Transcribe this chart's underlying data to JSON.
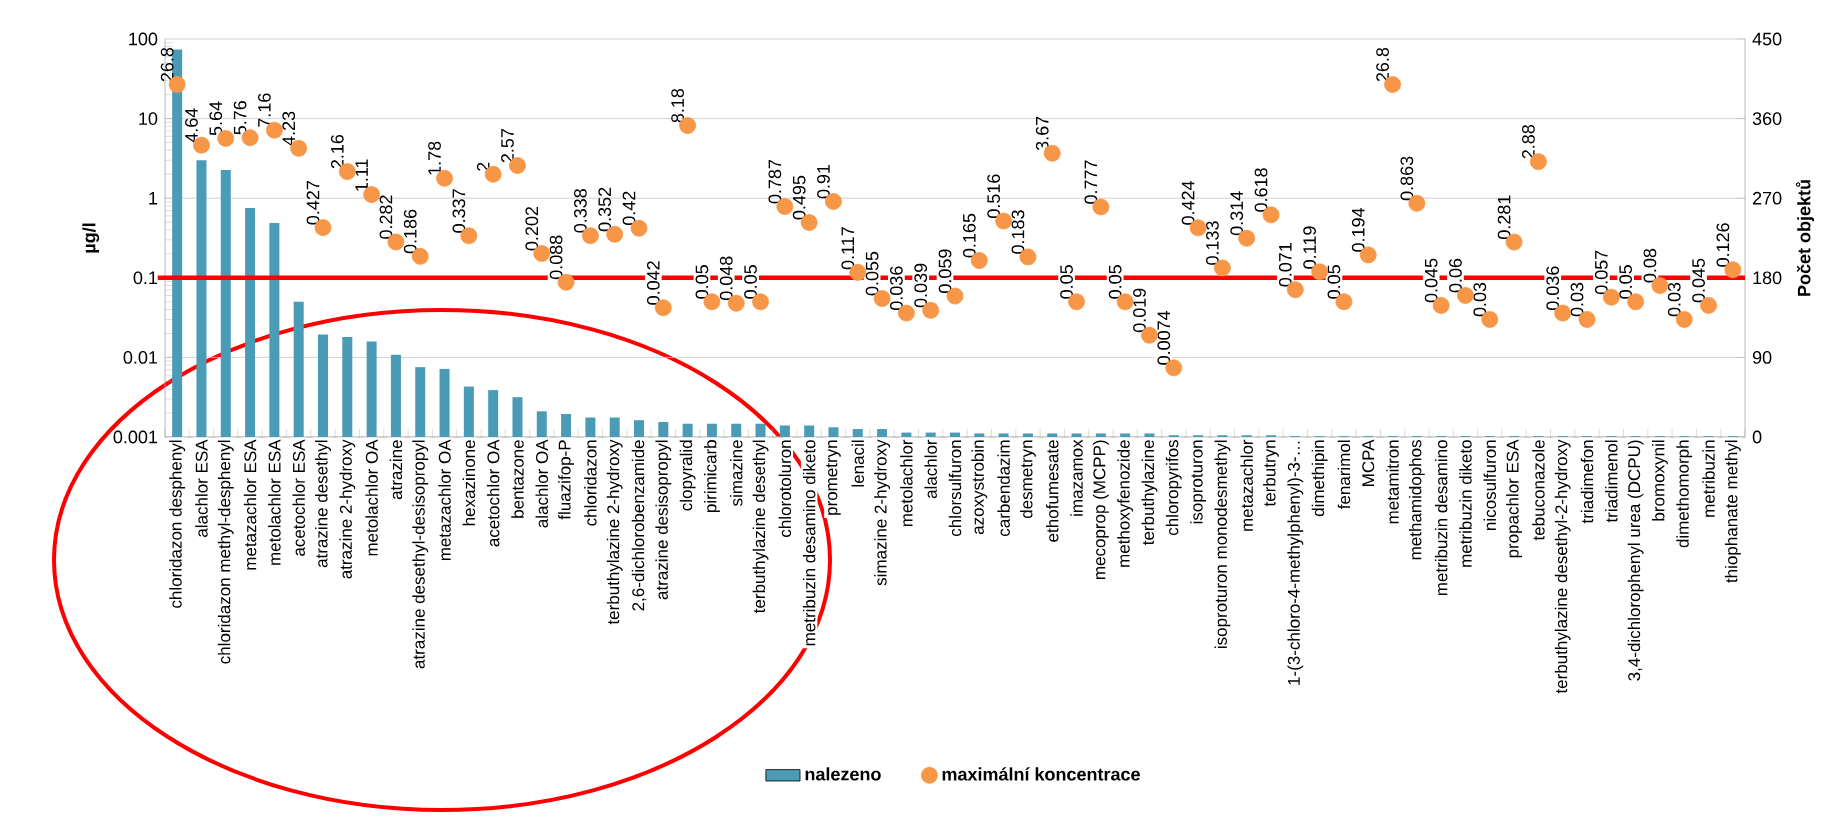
{
  "chart_data": {
    "type": "bar",
    "ylabel": "µg/l",
    "y2label": "Počet objektů",
    "categories": [
      "chloridazon desphenyl",
      "alachlor ESA",
      "chloridazon methyl-desphenyl",
      "metazachlor ESA",
      "metolachlor ESA",
      "acetochlor ESA",
      "atrazine desethyl",
      "atrazine 2-hydroxy",
      "metolachlor OA",
      "atrazine",
      "atrazine desethyl-desisopropyl",
      "metazachlor OA",
      "hexazinone",
      "acetochlor OA",
      "bentazone",
      "alachlor OA",
      "fluazifop-P",
      "chloridazon",
      "terbuthylazine 2-hydroxy",
      "2,6-dichlorobenzamide",
      "atrazine desisopropyl",
      "clopyralid",
      "pirimicarb",
      "simazine",
      "terbuthylazine desethyl",
      "chlorotoluron",
      "metribuzin desamino diketo",
      "prometryn",
      "lenacil",
      "simazine 2-hydroxy",
      "metolachlor",
      "alachlor",
      "chlorsulfuron",
      "azoxystrobin",
      "carbendazim",
      "desmetryn",
      "ethofumesate",
      "imazamox",
      "mecoprop (MCPP)",
      "methoxyfenozide",
      "terbuthylazine",
      "chloropyrifos",
      "isoproturon",
      "isoproturon monodesmethyl",
      "metazachlor",
      "terbutryn",
      "1-(3-chloro-4-methylphenyl)-3-…",
      "dimethipin",
      "fenarimol",
      "MCPA",
      "metamitron",
      "methamidophos",
      "metribuzin desamino",
      "metribuzin diketo",
      "nicosulfuron",
      "propachlor ESA",
      "tebuconazole",
      "terbuthylazine desethyl-2-hydroxy",
      "triadimefon",
      "triadimenol",
      "3,4-dichlorophenyl urea (DCPU)",
      "bromoxynil",
      "dimethomorph",
      "metribuzin",
      "thiophanate methyl"
    ],
    "series": [
      {
        "name": "nalezeno",
        "type": "bar",
        "axis": "y2",
        "color": "#4a9bb5",
        "values": [
          438,
          313,
          302,
          259,
          242,
          153,
          116,
          113,
          108,
          93,
          79,
          77,
          57,
          53,
          45,
          29,
          26,
          22,
          22,
          19,
          17,
          15,
          15,
          15,
          15,
          13,
          13,
          11,
          9,
          9,
          5,
          5,
          5,
          4,
          4,
          4,
          4,
          4,
          4,
          4,
          4,
          2,
          2,
          2,
          2,
          2,
          1,
          1,
          1,
          1,
          1,
          1,
          1,
          1,
          1,
          1,
          1,
          1,
          1,
          1,
          1,
          1,
          1,
          1,
          1
        ]
      },
      {
        "name": "maximální koncentrace",
        "type": "scatter",
        "data_labels": true,
        "color": "#f79646",
        "values": [
          26.8,
          4.64,
          5.64,
          5.76,
          7.16,
          4.23,
          0.427,
          2.16,
          1.11,
          0.282,
          0.186,
          1.78,
          0.337,
          2,
          2.57,
          0.202,
          0.088,
          0.338,
          0.352,
          0.42,
          0.042,
          8.18,
          0.05,
          0.048,
          0.05,
          0.787,
          0.495,
          0.91,
          0.117,
          0.055,
          0.036,
          0.039,
          0.059,
          0.165,
          0.516,
          0.183,
          3.67,
          0.05,
          0.777,
          0.05,
          0.019,
          0.0074,
          0.424,
          0.133,
          0.314,
          0.618,
          0.071,
          0.119,
          0.05,
          0.194,
          26.8,
          0.863,
          0.045,
          0.06,
          0.03,
          0.281,
          2.88,
          0.036,
          0.03,
          0.057,
          0.05,
          0.08,
          0.03,
          0.045,
          0.126
        ]
      }
    ],
    "log": "y",
    "ylim": [
      0.001,
      100
    ],
    "yticks": [
      0.001,
      0.01,
      0.1,
      1,
      10,
      100
    ],
    "y2lim": [
      0,
      450
    ],
    "y2ticks": [
      0,
      90,
      180,
      270,
      360,
      450
    ],
    "grid": "y",
    "legend": "bottom",
    "ref_lines": [
      {
        "axis": "y",
        "value": 0.1,
        "color": "#ff0000"
      }
    ]
  }
}
